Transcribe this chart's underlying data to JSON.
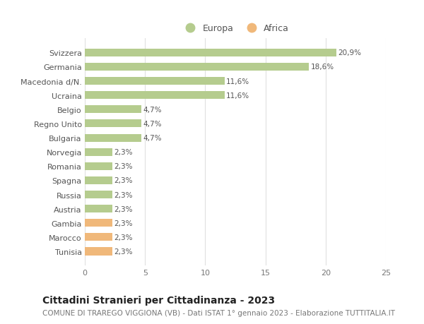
{
  "categories": [
    "Tunisia",
    "Marocco",
    "Gambia",
    "Austria",
    "Russia",
    "Spagna",
    "Romania",
    "Norvegia",
    "Bulgaria",
    "Regno Unito",
    "Belgio",
    "Ucraina",
    "Macedonia d/N.",
    "Germania",
    "Svizzera"
  ],
  "values": [
    2.3,
    2.3,
    2.3,
    2.3,
    2.3,
    2.3,
    2.3,
    2.3,
    4.7,
    4.7,
    4.7,
    11.6,
    11.6,
    18.6,
    20.9
  ],
  "labels": [
    "2,3%",
    "2,3%",
    "2,3%",
    "2,3%",
    "2,3%",
    "2,3%",
    "2,3%",
    "2,3%",
    "4,7%",
    "4,7%",
    "4,7%",
    "11,6%",
    "11,6%",
    "18,6%",
    "20,9%"
  ],
  "colors": [
    "#f0b87a",
    "#f0b87a",
    "#f0b87a",
    "#b5cc8e",
    "#b5cc8e",
    "#b5cc8e",
    "#b5cc8e",
    "#b5cc8e",
    "#b5cc8e",
    "#b5cc8e",
    "#b5cc8e",
    "#b5cc8e",
    "#b5cc8e",
    "#b5cc8e",
    "#b5cc8e"
  ],
  "legend_europa_color": "#b5cc8e",
  "legend_africa_color": "#f0b87a",
  "title": "Cittadini Stranieri per Cittadinanza - 2023",
  "subtitle": "COMUNE DI TRAREGO VIGGIONA (VB) - Dati ISTAT 1° gennaio 2023 - Elaborazione TUTTITALIA.IT",
  "xlim": [
    0,
    25
  ],
  "xticks": [
    0,
    5,
    10,
    15,
    20,
    25
  ],
  "background_color": "#ffffff",
  "bar_label_fontsize": 7.5,
  "tick_label_fontsize": 8,
  "title_fontsize": 10,
  "subtitle_fontsize": 7.5,
  "bar_height": 0.55
}
